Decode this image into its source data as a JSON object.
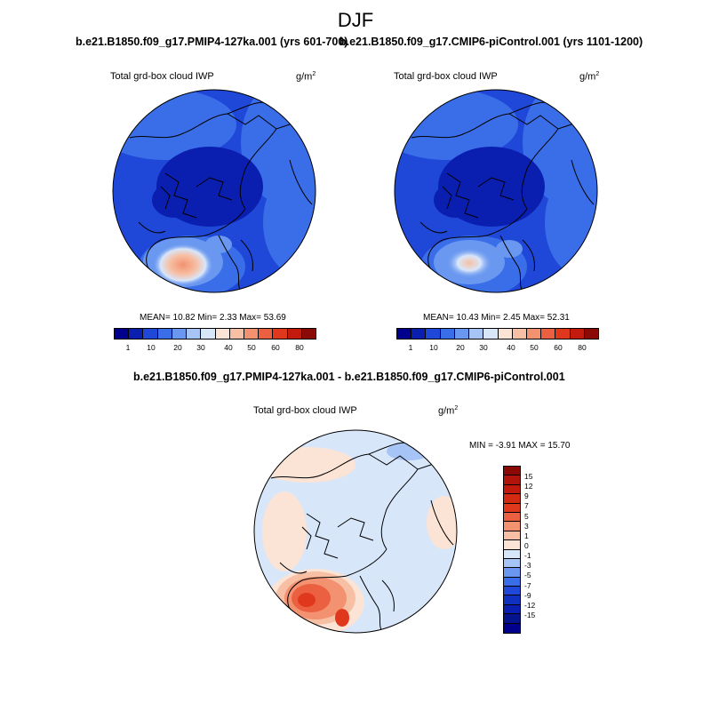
{
  "figure": {
    "season": "DJF",
    "panel_top_left": {
      "title": "b.e21.B1850.f09_g17.PMIP4-127ka.001 (yrs 601-700)",
      "variable": "Total grd-box cloud IWP",
      "units_base": "g/m",
      "units_exp": "2",
      "stats": "MEAN=  10.82  Min=   2.33  Max=  53.69",
      "mean": 10.82,
      "min": 2.33,
      "max": 53.69
    },
    "panel_top_right": {
      "title": "b.e21.B1850.f09_g17.CMIP6-piControl.001 (yrs 1101-1200)",
      "variable": "Total grd-box cloud IWP",
      "units_base": "g/m",
      "units_exp": "2",
      "stats": "MEAN=  10.43  Min=   2.45  Max=  52.31",
      "mean": 10.43,
      "min": 2.45,
      "max": 52.31
    },
    "panel_bottom": {
      "title": "b.e21.B1850.f09_g17.PMIP4-127ka.001 - b.e21.B1850.f09_g17.CMIP6-piControl.001",
      "variable": "Total grd-box cloud IWP",
      "units_base": "g/m",
      "units_exp": "2",
      "stats": "MIN = -3.91  MAX =  15.70",
      "min": -3.91,
      "max": 15.7
    },
    "abs_colorbar": {
      "colors": [
        "#00008c",
        "#0a1fb0",
        "#1f48d8",
        "#3a6ee8",
        "#6a98f0",
        "#a6c4f5",
        "#d8e6fa",
        "#fbe4d6",
        "#f7bfa4",
        "#f29270",
        "#ea6040",
        "#e0381d",
        "#c21a0c",
        "#8c0a05"
      ],
      "tick_labels": [
        "1",
        "10",
        "20",
        "30",
        "40",
        "50",
        "60",
        "80"
      ]
    },
    "diff_colorbar": {
      "colors": [
        "#8c0a05",
        "#c21a0c",
        "#e0381d",
        "#ea6040",
        "#f29270",
        "#f7bfa4",
        "#fbe4d6",
        "#d8e6fa",
        "#a6c4f5",
        "#6a98f0",
        "#3a6ee8",
        "#1f48d8",
        "#0a1fb0",
        "#00008c"
      ],
      "tick_labels": [
        "15",
        "12",
        "9",
        "7",
        "5",
        "3",
        "1",
        "0",
        "-1",
        "-3",
        "-5",
        "-7",
        "-9",
        "-12",
        "-15"
      ]
    }
  }
}
